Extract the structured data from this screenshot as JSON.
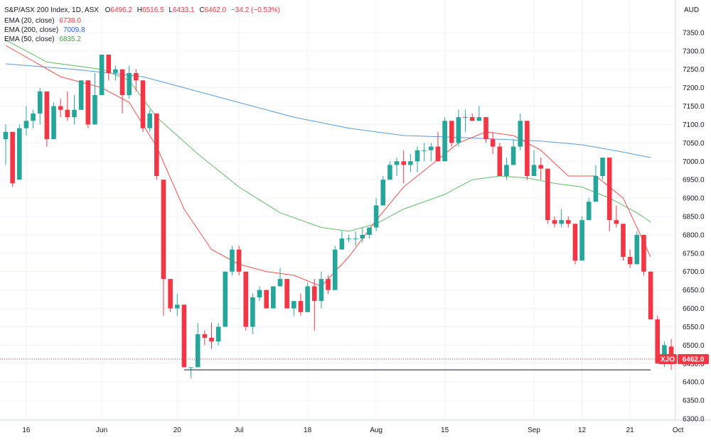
{
  "header": {
    "symbol": "S&P/ASX 200 Index, 1D, ASX",
    "o_label": "O",
    "o_value": "6496.2",
    "h_label": "H",
    "h_value": "6516.5",
    "l_label": "L",
    "l_value": "6433.1",
    "c_label": "C",
    "c_value": "6462.0",
    "change": "−34.2 (−0.53%)",
    "currency": "AUD"
  },
  "indicators": [
    {
      "label": "EMA (20, close)",
      "value": "6738.0",
      "color": "#ef5350"
    },
    {
      "label": "EMA (200, close)",
      "value": "7009.8",
      "color": "#5b9bd5"
    },
    {
      "label": "EMA (50, close)",
      "value": "6835.2",
      "color": "#66bb6a"
    }
  ],
  "price_tags": {
    "ticker": "XJO",
    "last": "6462.0",
    "tag_color": "#f23645"
  },
  "chart_data": {
    "type": "candlestick",
    "ylim": [
      6300,
      7400
    ],
    "y_ticks": [
      "6300.0",
      "6350.0",
      "6400.0",
      "6450.0",
      "6500.0",
      "6550.0",
      "6600.0",
      "6650.0",
      "6700.0",
      "6750.0",
      "6800.0",
      "6850.0",
      "6900.0",
      "6950.0",
      "7000.0",
      "7050.0",
      "7100.0",
      "7150.0",
      "7200.0",
      "7250.0",
      "7300.0",
      "7350.0"
    ],
    "x_ticks": [
      {
        "label": "16",
        "index": 3
      },
      {
        "label": "Jun",
        "index": 14
      },
      {
        "label": "20",
        "index": 25
      },
      {
        "label": "Jul",
        "index": 34
      },
      {
        "label": "18",
        "index": 44
      },
      {
        "label": "Aug",
        "index": 54
      },
      {
        "label": "15",
        "index": 64
      },
      {
        "label": "Sep",
        "index": 77
      },
      {
        "label": "12",
        "index": 84
      },
      {
        "label": "21",
        "index": 91
      },
      {
        "label": "Oct",
        "index": 98
      }
    ],
    "up_color": "#26a69a",
    "down_color": "#f23645",
    "candles": [
      [
        7060,
        7100,
        6990,
        7080
      ],
      [
        7080,
        7080,
        6930,
        6940
      ],
      [
        6950,
        7100,
        6950,
        7090
      ],
      [
        7090,
        7150,
        7070,
        7110
      ],
      [
        7110,
        7140,
        7090,
        7130
      ],
      [
        7130,
        7200,
        7100,
        7190
      ],
      [
        7190,
        7190,
        7040,
        7060
      ],
      [
        7060,
        7160,
        7060,
        7150
      ],
      [
        7150,
        7170,
        7120,
        7140
      ],
      [
        7140,
        7190,
        7110,
        7120
      ],
      [
        7120,
        7180,
        7100,
        7140
      ],
      [
        7140,
        7220,
        7140,
        7220
      ],
      [
        7220,
        7220,
        7090,
        7100
      ],
      [
        7100,
        7240,
        7100,
        7180
      ],
      [
        7180,
        7290,
        7180,
        7290
      ],
      [
        7290,
        7290,
        7220,
        7240
      ],
      [
        7240,
        7260,
        7220,
        7250
      ],
      [
        7250,
        7250,
        7130,
        7180
      ],
      [
        7180,
        7260,
        7170,
        7240
      ],
      [
        7240,
        7250,
        7190,
        7220
      ],
      [
        7220,
        7220,
        7080,
        7090
      ],
      [
        7090,
        7140,
        7080,
        7130
      ],
      [
        7130,
        7130,
        6950,
        6960
      ],
      [
        6950,
        6950,
        6580,
        6680
      ],
      [
        6680,
        6680,
        6590,
        6600
      ],
      [
        6600,
        6640,
        6580,
        6610
      ],
      [
        6610,
        6610,
        6440,
        6440
      ],
      [
        6440,
        6440,
        6410,
        6440
      ],
      [
        6440,
        6560,
        6440,
        6530
      ],
      [
        6530,
        6540,
        6500,
        6520
      ],
      [
        6520,
        6560,
        6490,
        6510
      ],
      [
        6510,
        6560,
        6500,
        6550
      ],
      [
        6550,
        6700,
        6550,
        6700
      ],
      [
        6700,
        6770,
        6690,
        6760
      ],
      [
        6760,
        6770,
        6690,
        6700
      ],
      [
        6700,
        6700,
        6540,
        6550
      ],
      [
        6550,
        6640,
        6530,
        6630
      ],
      [
        6630,
        6660,
        6620,
        6650
      ],
      [
        6650,
        6650,
        6600,
        6600
      ],
      [
        6600,
        6660,
        6600,
        6660
      ],
      [
        6660,
        6710,
        6660,
        6680
      ],
      [
        6680,
        6680,
        6600,
        6600
      ],
      [
        6600,
        6620,
        6580,
        6620
      ],
      [
        6620,
        6640,
        6580,
        6590
      ],
      [
        6590,
        6670,
        6590,
        6660
      ],
      [
        6660,
        6680,
        6540,
        6620
      ],
      [
        6620,
        6700,
        6600,
        6680
      ],
      [
        6680,
        6690,
        6640,
        6650
      ],
      [
        6650,
        6770,
        6650,
        6760
      ],
      [
        6760,
        6810,
        6760,
        6790
      ],
      [
        6790,
        6800,
        6780,
        6790
      ],
      [
        6790,
        6810,
        6770,
        6790
      ],
      [
        6790,
        6820,
        6780,
        6800
      ],
      [
        6800,
        6820,
        6790,
        6820
      ],
      [
        6820,
        6900,
        6810,
        6880
      ],
      [
        6880,
        6960,
        6880,
        6950
      ],
      [
        6950,
        7000,
        6950,
        6990
      ],
      [
        6990,
        7010,
        6960,
        7000
      ],
      [
        7000,
        7030,
        6940,
        6990
      ],
      [
        6990,
        7020,
        6970,
        7000
      ],
      [
        7000,
        7040,
        6970,
        7030
      ],
      [
        7030,
        7050,
        7000,
        7030
      ],
      [
        7030,
        7050,
        7000,
        7040
      ],
      [
        7040,
        7080,
        7000,
        7000
      ],
      [
        7000,
        7120,
        7000,
        7110
      ],
      [
        7110,
        7110,
        7040,
        7050
      ],
      [
        7050,
        7140,
        7040,
        7120
      ],
      [
        7120,
        7140,
        7080,
        7120
      ],
      [
        7120,
        7130,
        7110,
        7110
      ],
      [
        7110,
        7150,
        7110,
        7120
      ],
      [
        7120,
        7120,
        7050,
        7060
      ],
      [
        7060,
        7080,
        7020,
        7040
      ],
      [
        7040,
        7050,
        6960,
        6960
      ],
      [
        6960,
        7010,
        6950,
        6990
      ],
      [
        6990,
        7060,
        6990,
        7040
      ],
      [
        7040,
        7130,
        7030,
        7110
      ],
      [
        7110,
        7110,
        6950,
        6960
      ],
      [
        6960,
        7030,
        6960,
        6990
      ],
      [
        6990,
        7010,
        6950,
        6980
      ],
      [
        6980,
        6980,
        6830,
        6840
      ],
      [
        6840,
        6850,
        6820,
        6830
      ],
      [
        6830,
        6870,
        6820,
        6840
      ],
      [
        6840,
        6850,
        6820,
        6830
      ],
      [
        6830,
        6830,
        6720,
        6730
      ],
      [
        6730,
        6850,
        6730,
        6840
      ],
      [
        6840,
        6900,
        6840,
        6890
      ],
      [
        6890,
        6990,
        6890,
        6960
      ],
      [
        6960,
        7010,
        6950,
        7010
      ],
      [
        7010,
        7010,
        6810,
        6840
      ],
      [
        6840,
        6880,
        6820,
        6830
      ],
      [
        6830,
        6830,
        6730,
        6740
      ],
      [
        6740,
        6760,
        6710,
        6720
      ],
      [
        6720,
        6810,
        6720,
        6800
      ],
      [
        6800,
        6800,
        6690,
        6700
      ],
      [
        6700,
        6700,
        6570,
        6570
      ],
      [
        6570,
        6580,
        6450,
        6450
      ],
      [
        6450,
        6510,
        6440,
        6500
      ],
      [
        6496.2,
        6516.5,
        6433.1,
        6462.0
      ]
    ],
    "ema20": [
      [
        0,
        7315
      ],
      [
        8,
        7230
      ],
      [
        14,
        7200
      ],
      [
        18,
        7160
      ],
      [
        22,
        7040
      ],
      [
        26,
        6870
      ],
      [
        30,
        6760
      ],
      [
        34,
        6720
      ],
      [
        38,
        6700
      ],
      [
        42,
        6690
      ],
      [
        46,
        6660
      ],
      [
        50,
        6740
      ],
      [
        54,
        6840
      ],
      [
        58,
        6930
      ],
      [
        62,
        6990
      ],
      [
        66,
        7050
      ],
      [
        70,
        7080
      ],
      [
        74,
        7070
      ],
      [
        78,
        7030
      ],
      [
        82,
        6960
      ],
      [
        86,
        6960
      ],
      [
        90,
        6900
      ],
      [
        94,
        6740
      ]
    ],
    "ema50": [
      [
        0,
        7330
      ],
      [
        6,
        7270
      ],
      [
        14,
        7250
      ],
      [
        18,
        7220
      ],
      [
        22,
        7120
      ],
      [
        28,
        7020
      ],
      [
        34,
        6930
      ],
      [
        40,
        6860
      ],
      [
        46,
        6820
      ],
      [
        50,
        6810
      ],
      [
        54,
        6830
      ],
      [
        58,
        6870
      ],
      [
        64,
        6910
      ],
      [
        68,
        6950
      ],
      [
        72,
        6960
      ],
      [
        76,
        6955
      ],
      [
        80,
        6940
      ],
      [
        84,
        6930
      ],
      [
        88,
        6900
      ],
      [
        92,
        6860
      ],
      [
        94,
        6835
      ]
    ],
    "ema200": [
      [
        0,
        7265
      ],
      [
        10,
        7250
      ],
      [
        20,
        7230
      ],
      [
        26,
        7200
      ],
      [
        34,
        7160
      ],
      [
        42,
        7120
      ],
      [
        50,
        7090
      ],
      [
        58,
        7070
      ],
      [
        66,
        7065
      ],
      [
        72,
        7060
      ],
      [
        78,
        7055
      ],
      [
        84,
        7045
      ],
      [
        90,
        7025
      ],
      [
        94,
        7010
      ]
    ],
    "support_line": {
      "y": 6433,
      "from_index": 26,
      "to_index": 94
    }
  }
}
